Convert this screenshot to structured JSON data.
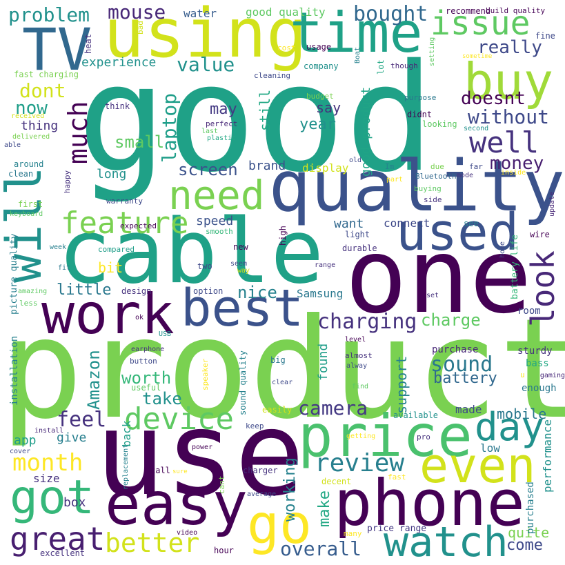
{
  "palette": [
    "#440154",
    "#46327e",
    "#365c8d",
    "#277f8e",
    "#1fa187",
    "#4ac16d",
    "#a0da39",
    "#fde725"
  ],
  "words": [
    {
      "text": "good",
      "color": "#1fa187"
    },
    {
      "text": "product",
      "color": "#7ad151"
    },
    {
      "text": "use",
      "color": "#440154"
    },
    {
      "text": "one",
      "color": "#440154"
    },
    {
      "text": "cable",
      "color": "#1fa187"
    },
    {
      "text": "quality",
      "color": "#3b528b"
    },
    {
      "text": "using",
      "color": "#d2e21b"
    },
    {
      "text": "time",
      "color": "#1fa187"
    },
    {
      "text": "TV",
      "color": "#31688e"
    },
    {
      "text": "price",
      "color": "#4ac16d"
    },
    {
      "text": "phone",
      "color": "#440154"
    },
    {
      "text": "easy",
      "color": "#440154"
    },
    {
      "text": "work",
      "color": "#440154"
    },
    {
      "text": "best",
      "color": "#3b528b"
    },
    {
      "text": "buy",
      "color": "#a0da39"
    },
    {
      "text": "used",
      "color": "#3b528b"
    },
    {
      "text": "need",
      "color": "#7ad151"
    },
    {
      "text": "will",
      "color": "#21918c"
    },
    {
      "text": "got",
      "color": "#35b779"
    },
    {
      "text": "go",
      "color": "#fde725"
    },
    {
      "text": "even",
      "color": "#d2e21b"
    },
    {
      "text": "watch",
      "color": "#21918c"
    },
    {
      "text": "day",
      "color": "#21918c"
    },
    {
      "text": "great",
      "color": "#481f70"
    },
    {
      "text": "look",
      "color": "#482878"
    },
    {
      "text": "issue",
      "color": "#5ec962"
    },
    {
      "text": "feature",
      "color": "#7ad151"
    },
    {
      "text": "device",
      "color": "#5ec962"
    },
    {
      "text": "review",
      "color": "#277f8e"
    },
    {
      "text": "better",
      "color": "#d2e21b"
    },
    {
      "text": "month",
      "color": "#fde725"
    },
    {
      "text": "well",
      "color": "#46327e"
    },
    {
      "text": "much",
      "color": "#440154"
    },
    {
      "text": "charging",
      "color": "#46327e"
    },
    {
      "text": "camera",
      "color": "#443983"
    },
    {
      "text": "sound",
      "color": "#2a788e"
    },
    {
      "text": "overall",
      "color": "#365c8d"
    },
    {
      "text": "mouse",
      "color": "#482878"
    },
    {
      "text": "bought",
      "color": "#31688e"
    },
    {
      "text": "problem",
      "color": "#21918c"
    },
    {
      "text": "laptop",
      "color": "#1f9e89"
    },
    {
      "text": "without",
      "color": "#3e4989"
    },
    {
      "text": "money",
      "color": "#481f70"
    },
    {
      "text": "doesnt",
      "color": "#440154"
    },
    {
      "text": "value",
      "color": "#21918c"
    },
    {
      "text": "really",
      "color": "#3e4989"
    },
    {
      "text": "screen",
      "color": "#3b528b"
    },
    {
      "text": "dont",
      "color": "#d2e21b"
    },
    {
      "text": "now",
      "color": "#1f9e89"
    },
    {
      "text": "small",
      "color": "#5ec962"
    },
    {
      "text": "feel",
      "color": "#46327e"
    },
    {
      "text": "Amazon",
      "color": "#21918c"
    },
    {
      "text": "worth",
      "color": "#35b779"
    },
    {
      "text": "take",
      "color": "#21918c"
    },
    {
      "text": "little",
      "color": "#2a788e"
    },
    {
      "text": "nice",
      "color": "#26828e"
    },
    {
      "text": "charge",
      "color": "#5ec962"
    },
    {
      "text": "battery",
      "color": "#31688e"
    },
    {
      "text": "mobile",
      "color": "#2a788e"
    },
    {
      "text": "working",
      "color": "#26828e"
    },
    {
      "text": "make",
      "color": "#22a884"
    },
    {
      "text": "come",
      "color": "#3e4989"
    },
    {
      "text": "quite",
      "color": "#7ad151"
    },
    {
      "text": "support",
      "color": "#26828e"
    },
    {
      "text": "found",
      "color": "#1f9e89"
    },
    {
      "text": "may",
      "color": "#443983"
    },
    {
      "text": "say",
      "color": "#46327e"
    },
    {
      "text": "year",
      "color": "#21918c"
    },
    {
      "text": "still",
      "color": "#22a884"
    },
    {
      "text": "good product",
      "color": "#20a486"
    },
    {
      "text": "experience",
      "color": "#21918c"
    },
    {
      "text": "thing",
      "color": "#46327e"
    },
    {
      "text": "long",
      "color": "#21918c"
    },
    {
      "text": "brand",
      "color": "#3b528b"
    },
    {
      "text": "display",
      "color": "#d2e21b"
    },
    {
      "text": "speed",
      "color": "#3b528b"
    },
    {
      "text": "want",
      "color": "#31688e"
    },
    {
      "text": "connect",
      "color": "#3e4989"
    },
    {
      "text": "give",
      "color": "#277f8e"
    },
    {
      "text": "app",
      "color": "#1f9e89"
    },
    {
      "text": "size",
      "color": "#46327e"
    },
    {
      "text": "box",
      "color": "#46327e"
    },
    {
      "text": "back",
      "color": "#1f9e89"
    },
    {
      "text": "bit",
      "color": "#fde725"
    },
    {
      "text": "Samsung",
      "color": "#2a788e"
    },
    {
      "text": "water",
      "color": "#365c8d"
    },
    {
      "text": "good quality",
      "color": "#5ec962"
    },
    {
      "text": "made",
      "color": "#3e4989"
    },
    {
      "text": "low",
      "color": "#2a788e"
    },
    {
      "text": "performance",
      "color": "#21918c"
    },
    {
      "text": "purchased",
      "color": "#277f8e"
    },
    {
      "text": "purchase",
      "color": "#482878"
    },
    {
      "text": "sturdy",
      "color": "#46327e"
    },
    {
      "text": "bass",
      "color": "#22a884"
    },
    {
      "text": "enough",
      "color": "#2a788e"
    },
    {
      "text": "room",
      "color": "#3e4989"
    },
    {
      "text": "battery life",
      "color": "#35b779"
    },
    {
      "text": "installation",
      "color": "#26828e"
    },
    {
      "text": "picture quality",
      "color": "#277f8e"
    },
    {
      "text": "sound quality",
      "color": "#26828e"
    },
    {
      "text": "price range",
      "color": "#443983"
    },
    {
      "text": "fast charging",
      "color": "#7ad151"
    },
    {
      "text": "build quality",
      "color": "#440154"
    },
    {
      "text": "recommend",
      "color": "#440154"
    },
    {
      "text": "heat",
      "color": "#46327e"
    },
    {
      "text": "bad",
      "color": "#d2e21b"
    },
    {
      "text": "cost",
      "color": "#fde725"
    },
    {
      "text": "usage",
      "color": "#440154"
    },
    {
      "text": "company",
      "color": "#21918c"
    },
    {
      "text": "cleaning",
      "color": "#3e4989"
    },
    {
      "text": "lot",
      "color": "#22a884"
    },
    {
      "text": "Boat",
      "color": "#26828e"
    },
    {
      "text": "though",
      "color": "#482878"
    },
    {
      "text": "setting",
      "color": "#5ec962"
    },
    {
      "text": "sometime",
      "color": "#fde725"
    },
    {
      "text": "fine",
      "color": "#3e4989"
    },
    {
      "text": "budget",
      "color": "#7ad151"
    },
    {
      "text": "purpose",
      "color": "#2a788e"
    },
    {
      "text": "didnt",
      "color": "#440154"
    },
    {
      "text": "looking",
      "color": "#5ec962"
    },
    {
      "text": "second",
      "color": "#21918c"
    },
    {
      "text": "think",
      "color": "#46327e"
    },
    {
      "text": "received",
      "color": "#d2e21b"
    },
    {
      "text": "delivered",
      "color": "#7ad151"
    },
    {
      "text": "able",
      "color": "#3e4989"
    },
    {
      "text": "perfect",
      "color": "#482878"
    },
    {
      "text": "last",
      "color": "#5ec962"
    },
    {
      "text": "plastic",
      "color": "#22a884"
    },
    {
      "text": "around",
      "color": "#26828e"
    },
    {
      "text": "clean",
      "color": "#2a788e"
    },
    {
      "text": "happy",
      "color": "#46327e"
    },
    {
      "text": "first",
      "color": "#7ad151"
    },
    {
      "text": "keyboard",
      "color": "#5ec962"
    },
    {
      "text": "warranty",
      "color": "#3e4989"
    },
    {
      "text": "expected",
      "color": "#440154"
    },
    {
      "text": "smooth",
      "color": "#35b779"
    },
    {
      "text": "old",
      "color": "#3e4989"
    },
    {
      "text": "Im",
      "color": "#26828e"
    },
    {
      "text": "part",
      "color": "#fde725"
    },
    {
      "text": "Bluetooth",
      "color": "#31688e"
    },
    {
      "text": "buying",
      "color": "#5ec962"
    },
    {
      "text": "due",
      "color": "#7ad151"
    },
    {
      "text": "mode",
      "color": "#46327e"
    },
    {
      "text": "far",
      "color": "#3e4989"
    },
    {
      "text": "inside",
      "color": "#fde725"
    },
    {
      "text": "side",
      "color": "#46327e"
    },
    {
      "text": "update",
      "color": "#482878"
    },
    {
      "text": "see",
      "color": "#26828e"
    },
    {
      "text": "light",
      "color": "#3e4989"
    },
    {
      "text": "high",
      "color": "#440154"
    },
    {
      "text": "durable",
      "color": "#46327e"
    },
    {
      "text": "wire",
      "color": "#440154"
    },
    {
      "text": "home",
      "color": "#3e4989"
    },
    {
      "text": "week",
      "color": "#277f8e"
    },
    {
      "text": "compared",
      "color": "#1f9e89"
    },
    {
      "text": "new",
      "color": "#440154"
    },
    {
      "text": "seem",
      "color": "#3e4989"
    },
    {
      "text": "way",
      "color": "#d2e21b"
    },
    {
      "text": "range",
      "color": "#46327e"
    },
    {
      "text": "two",
      "color": "#3e4989"
    },
    {
      "text": "fit",
      "color": "#2a788e"
    },
    {
      "text": "amazing",
      "color": "#5ec962"
    },
    {
      "text": "design",
      "color": "#46327e"
    },
    {
      "text": "option",
      "color": "#3e4989"
    },
    {
      "text": "less",
      "color": "#5ec962"
    },
    {
      "text": "ok",
      "color": "#440154"
    },
    {
      "text": "USB",
      "color": "#21918c"
    },
    {
      "text": "level",
      "color": "#440154"
    },
    {
      "text": "almost",
      "color": "#46327e"
    },
    {
      "text": "alway",
      "color": "#3e4989"
    },
    {
      "text": "gaming",
      "color": "#482878"
    },
    {
      "text": "set",
      "color": "#46327e"
    },
    {
      "text": "earphone",
      "color": "#46327e"
    },
    {
      "text": "button",
      "color": "#3e4989"
    },
    {
      "text": "useful",
      "color": "#5ec962"
    },
    {
      "text": "speaker",
      "color": "#fde725"
    },
    {
      "text": "big",
      "color": "#2a788e"
    },
    {
      "text": "clear",
      "color": "#3e4989"
    },
    {
      "text": "find",
      "color": "#5ec962"
    },
    {
      "text": "u",
      "color": "#fde725"
    },
    {
      "text": "easily",
      "color": "#d2e21b"
    },
    {
      "text": "keep",
      "color": "#3e4989"
    },
    {
      "text": "available",
      "color": "#21918c"
    },
    {
      "text": "install",
      "color": "#482878"
    },
    {
      "text": "cover",
      "color": "#3e4989"
    },
    {
      "text": "getting",
      "color": "#fde725"
    },
    {
      "text": "pro",
      "color": "#46327e"
    },
    {
      "text": "power",
      "color": "#440154"
    },
    {
      "text": "replacement",
      "color": "#26828e"
    },
    {
      "text": "call",
      "color": "#440154"
    },
    {
      "text": "sure",
      "color": "#fde725"
    },
    {
      "text": "cant",
      "color": "#7ad151"
    },
    {
      "text": "charger",
      "color": "#46327e"
    },
    {
      "text": "average",
      "color": "#3e4989"
    },
    {
      "text": "decent",
      "color": "#d2e21b"
    },
    {
      "text": "fast",
      "color": "#fde725"
    },
    {
      "text": "many",
      "color": "#fde725"
    },
    {
      "text": "video",
      "color": "#440154"
    },
    {
      "text": "hour",
      "color": "#440154"
    },
    {
      "text": "excellent",
      "color": "#46327e"
    }
  ]
}
